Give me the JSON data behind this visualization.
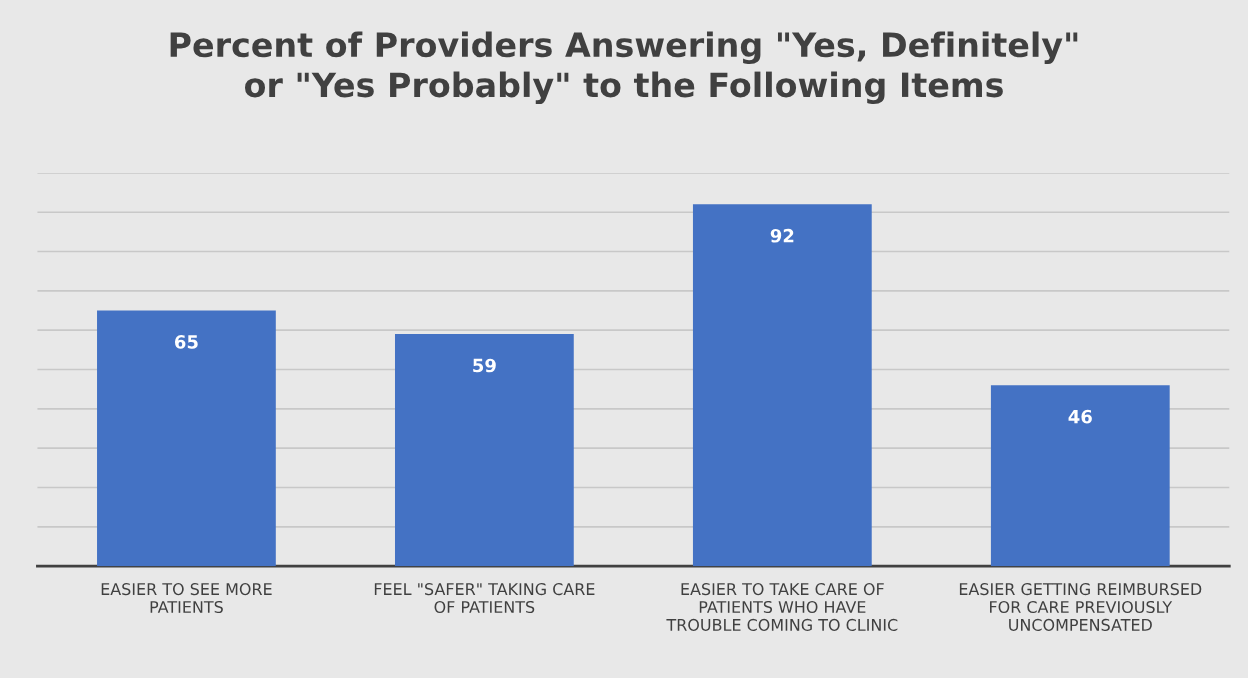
{
  "chart_data": {
    "type": "bar",
    "title": "Percent of Providers Answering \"Yes, Definitely\"\nor \"Yes Probably\" to the Following Items",
    "categories": [
      "EASIER TO SEE MORE\nPATIENTS",
      "FEEL \"SAFER\" TAKING CARE\nOF PATIENTS",
      "EASIER TO TAKE CARE OF\nPATIENTS WHO HAVE\nTROUBLE COMING TO CLINIC",
      "EASIER GETTING REIMBURSED\nFOR CARE PREVIOUSLY\nUNCOMPENSATED"
    ],
    "values": [
      65,
      59,
      92,
      46
    ],
    "color": "#4472c4",
    "ylim": [
      0,
      100
    ],
    "yticks": [
      {
        "value": 0,
        "label": null
      },
      {
        "value": 10,
        "label": null
      },
      {
        "value": 20,
        "label": null
      },
      {
        "value": 30,
        "label": null
      },
      {
        "value": 40,
        "label": null
      },
      {
        "value": 50,
        "label": null
      },
      {
        "value": 60,
        "label": null
      },
      {
        "value": 70,
        "label": null
      },
      {
        "value": 80,
        "label": null
      },
      {
        "value": 90,
        "label": null
      },
      {
        "value": 100,
        "label": null
      }
    ],
    "tick_labels": "x",
    "grid": "y",
    "data_labels": true
  }
}
